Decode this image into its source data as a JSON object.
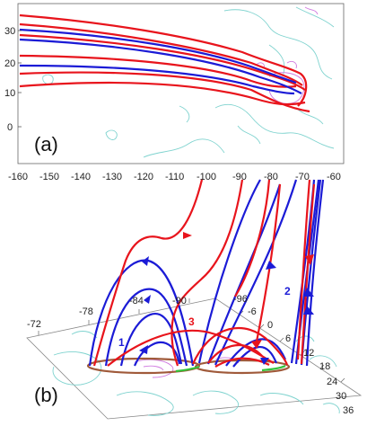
{
  "panel_a": {
    "label": "(a)",
    "y_ticks": [
      "30",
      "20",
      "10",
      "0"
    ],
    "x_ticks": [
      "-160",
      "-150",
      "-140",
      "-130",
      "-120",
      "-110",
      "-100",
      "-90",
      "-80",
      "-70",
      "-60"
    ]
  },
  "panel_b": {
    "label": "(b)",
    "x_ticks": [
      "-72",
      "-78",
      "-84",
      "-90",
      "-96"
    ],
    "y_ticks": [
      "-6",
      "0",
      "6",
      "12",
      "18",
      "24",
      "30",
      "36"
    ],
    "loop_numbers": [
      "1",
      "2",
      "3"
    ]
  },
  "colors": {
    "red_lines": "#e8141c",
    "blue_lines": "#1b1bd6",
    "contour_cyan": "#7fd3cf",
    "contour_magenta": "#d07be0",
    "footpoint_brown": "#a05a3a",
    "footpoint_green": "#33c23a"
  }
}
